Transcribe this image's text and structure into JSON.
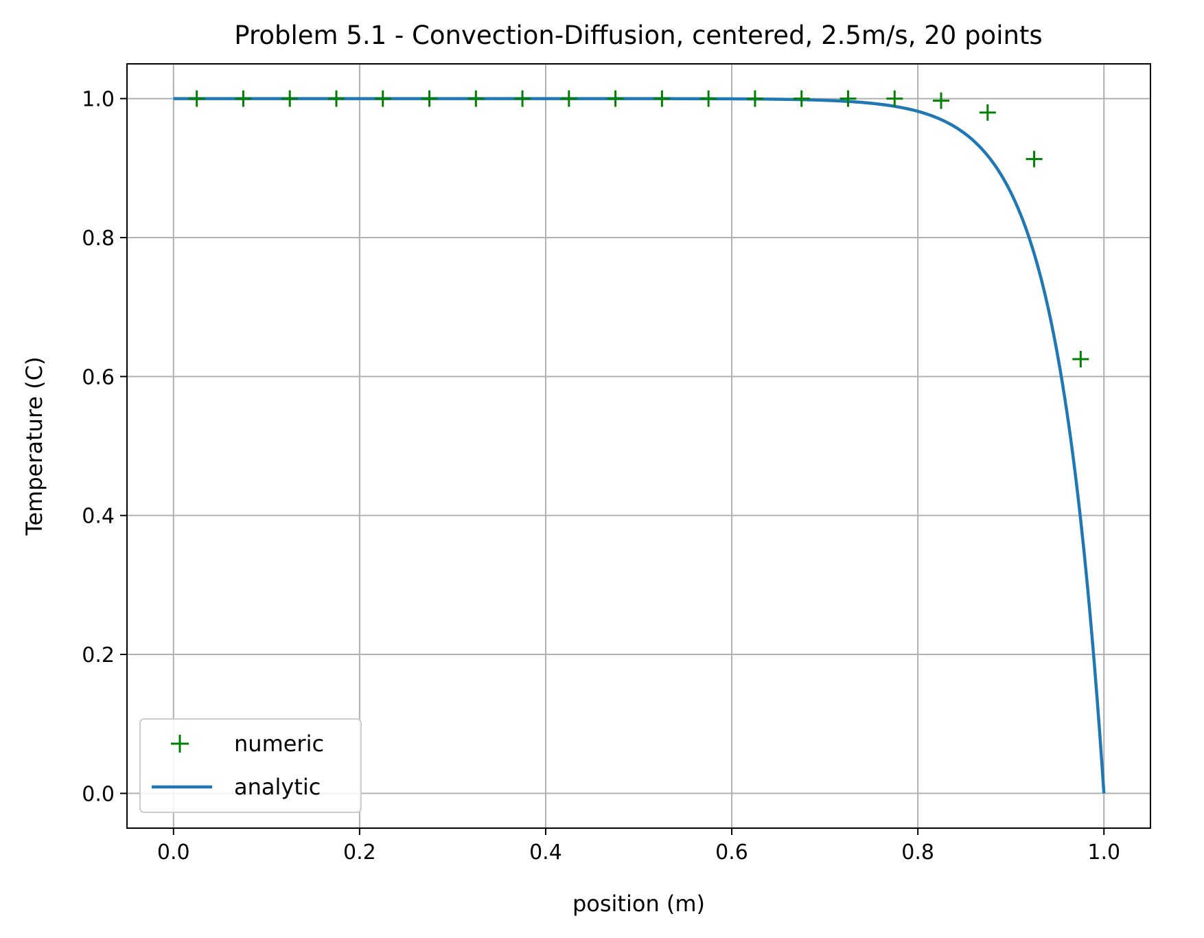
{
  "chart_data": {
    "type": "line",
    "title": "Problem 5.1 - Convection-Diffusion, centered, 2.5m/s, 20 points",
    "xlabel": "position (m)",
    "ylabel": "Temperature (C)",
    "xlim": [
      -0.05,
      1.05
    ],
    "ylim": [
      -0.05,
      1.05
    ],
    "xticks": [
      0.0,
      0.2,
      0.4,
      0.6,
      0.8,
      1.0
    ],
    "yticks": [
      0.0,
      0.2,
      0.4,
      0.6,
      0.8,
      1.0
    ],
    "xtick_labels": [
      "0.0",
      "0.2",
      "0.4",
      "0.6",
      "0.8",
      "1.0"
    ],
    "ytick_labels": [
      "0.0",
      "0.2",
      "0.4",
      "0.6",
      "0.8",
      "1.0"
    ],
    "grid": true,
    "legend_position": "lower-left",
    "series": [
      {
        "name": "numeric",
        "style": "marker",
        "marker": "+",
        "color": "#008000",
        "x": [
          0.025,
          0.075,
          0.125,
          0.175,
          0.225,
          0.275,
          0.325,
          0.375,
          0.425,
          0.475,
          0.525,
          0.575,
          0.625,
          0.675,
          0.725,
          0.775,
          0.825,
          0.875,
          0.925,
          0.975
        ],
        "y": [
          1.0,
          1.0,
          1.0,
          1.0,
          1.0,
          1.0,
          1.0,
          1.0,
          1.0,
          1.0,
          1.0,
          1.0,
          1.0,
          1.0,
          1.0,
          1.0,
          0.997,
          0.98,
          0.913,
          0.625
        ]
      },
      {
        "name": "analytic",
        "style": "line",
        "color": "#1f77b4",
        "peclet": 20
      }
    ]
  }
}
